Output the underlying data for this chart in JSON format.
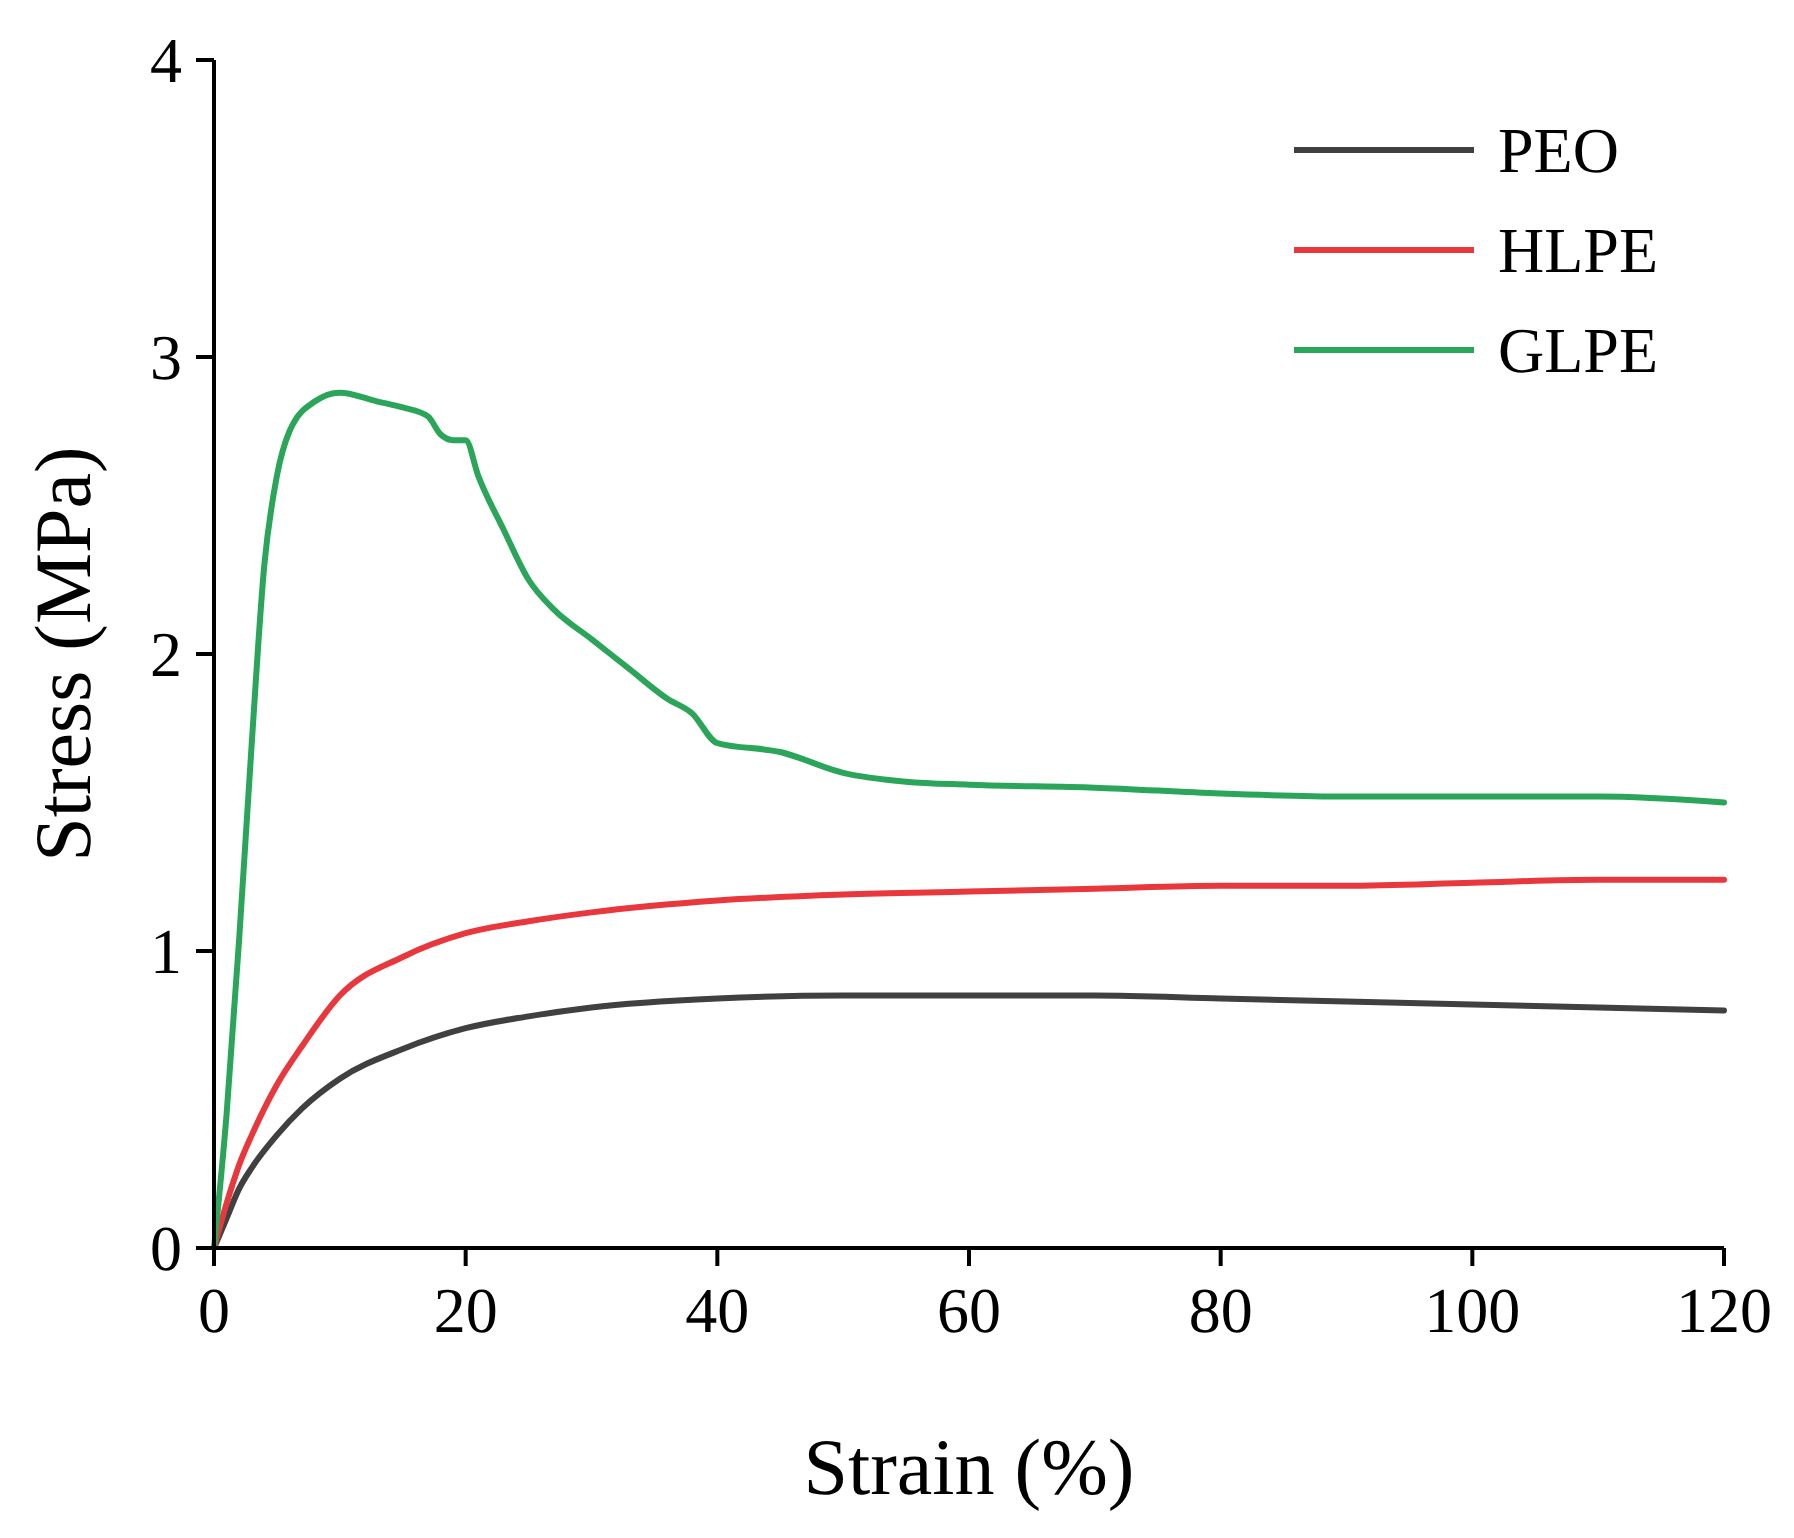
{
  "chart_data": {
    "type": "line",
    "xlabel": "Strain (%)",
    "ylabel": "Stress (MPa)",
    "xlim": [
      0,
      120
    ],
    "ylim": [
      0,
      4
    ],
    "xticks": [
      0,
      20,
      40,
      60,
      80,
      100,
      120
    ],
    "yticks": [
      0,
      1,
      2,
      3,
      4
    ],
    "legend": "top right",
    "grid": false,
    "line_style": "solid",
    "marker": "none",
    "series": [
      {
        "name": "PEO",
        "color": "#404040",
        "x": [
          0,
          1,
          2,
          3,
          5,
          7,
          10,
          15,
          20,
          25,
          30,
          40,
          50,
          60,
          70,
          80,
          90,
          100,
          110,
          120
        ],
        "values": [
          0,
          0.1,
          0.2,
          0.27,
          0.38,
          0.47,
          0.57,
          0.67,
          0.74,
          0.78,
          0.81,
          0.84,
          0.85,
          0.85,
          0.85,
          0.84,
          0.83,
          0.82,
          0.81,
          0.8
        ]
      },
      {
        "name": "HLPE",
        "color": "#e8383d",
        "x": [
          0,
          1,
          2,
          3,
          5,
          7,
          10,
          15,
          20,
          25,
          30,
          40,
          50,
          60,
          70,
          80,
          90,
          100,
          110,
          120
        ],
        "values": [
          0,
          0.15,
          0.28,
          0.38,
          0.55,
          0.68,
          0.85,
          0.98,
          1.06,
          1.1,
          1.13,
          1.17,
          1.19,
          1.2,
          1.21,
          1.22,
          1.22,
          1.23,
          1.24,
          1.24
        ]
      },
      {
        "name": "GLPE",
        "color": "#2aa55a",
        "x": [
          0,
          1,
          2,
          3,
          4,
          5,
          6,
          8,
          10,
          13,
          15,
          17,
          18,
          19,
          20,
          21,
          23,
          25,
          27,
          30,
          33,
          36,
          38,
          40,
          45,
          50,
          55,
          60,
          70,
          80,
          90,
          100,
          110,
          120
        ],
        "values": [
          0,
          0.45,
          1.04,
          1.7,
          2.3,
          2.6,
          2.75,
          2.85,
          2.88,
          2.85,
          2.83,
          2.8,
          2.74,
          2.72,
          2.72,
          2.6,
          2.42,
          2.25,
          2.15,
          2.05,
          1.95,
          1.85,
          1.8,
          1.7,
          1.67,
          1.6,
          1.57,
          1.56,
          1.55,
          1.53,
          1.52,
          1.52,
          1.52,
          1.5
        ]
      }
    ]
  }
}
